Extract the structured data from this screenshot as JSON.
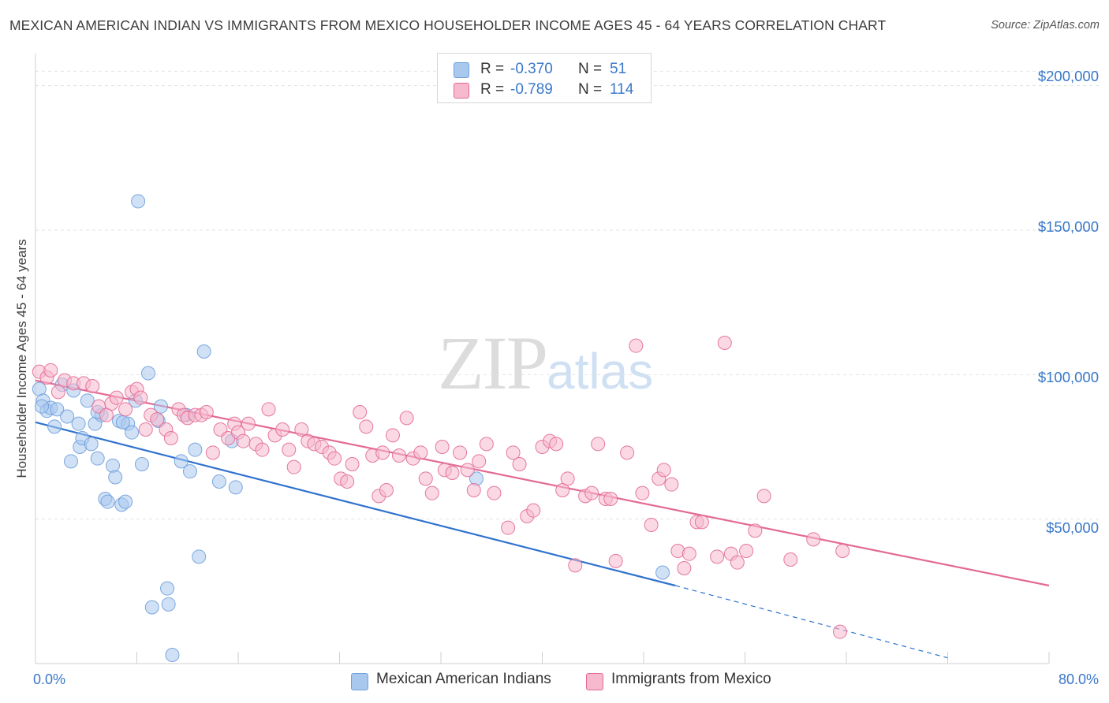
{
  "header": {
    "title": "MEXICAN AMERICAN INDIAN VS IMMIGRANTS FROM MEXICO HOUSEHOLDER INCOME AGES 45 - 64 YEARS CORRELATION CHART",
    "source": "Source: ZipAtlas.com"
  },
  "watermark": {
    "zip": "ZIP",
    "atlas": "atlas"
  },
  "legend": {
    "rows": [
      {
        "r_label": "R =",
        "r_value": "-0.370",
        "n_label": "N =",
        "n_value": "51",
        "color": "#a9c8ee"
      },
      {
        "r_label": "R =",
        "r_value": "-0.789",
        "n_label": "N =",
        "n_value": "114",
        "color": "#f6b9cd"
      }
    ]
  },
  "chart_data": {
    "type": "scatter",
    "title": "MEXICAN AMERICAN INDIAN VS IMMIGRANTS FROM MEXICO HOUSEHOLDER INCOME AGES 45 - 64 YEARS CORRELATION CHART",
    "xlabel": "",
    "ylabel": "Householder Income Ages 45 - 64 years",
    "xlim": [
      0,
      80
    ],
    "ylim": [
      0,
      210000
    ],
    "x_tick_labels": [
      "0.0%",
      "80.0%"
    ],
    "y_ticks": [
      50000,
      100000,
      150000,
      200000
    ],
    "y_tick_labels": [
      "$50,000",
      "$100,000",
      "$150,000",
      "$200,000"
    ],
    "grid": true,
    "legend_position": "top-center",
    "series": [
      {
        "name": "Mexican American Indians",
        "color": "#6f9fdc",
        "fill": "#a9c8ee",
        "r": -0.37,
        "n": 51,
        "trend": {
          "x0": 0,
          "y0": 83500,
          "x1": 50.5,
          "y1": 27000,
          "dash_to_x": 72,
          "dash_to_y": 2000
        },
        "points": [
          [
            0.3,
            95000
          ],
          [
            0.6,
            91000
          ],
          [
            0.9,
            87500
          ],
          [
            1.2,
            88500
          ],
          [
            1.5,
            82000
          ],
          [
            1.7,
            88000
          ],
          [
            2.1,
            96500
          ],
          [
            2.8,
            70000
          ],
          [
            3.0,
            94500
          ],
          [
            3.4,
            83000
          ],
          [
            3.5,
            75000
          ],
          [
            3.7,
            78000
          ],
          [
            4.1,
            91000
          ],
          [
            4.4,
            76000
          ],
          [
            4.7,
            83000
          ],
          [
            4.9,
            71000
          ],
          [
            5.2,
            86000
          ],
          [
            5.5,
            57000
          ],
          [
            5.7,
            56000
          ],
          [
            6.1,
            68500
          ],
          [
            6.3,
            64500
          ],
          [
            6.6,
            84000
          ],
          [
            6.8,
            55000
          ],
          [
            7.1,
            56000
          ],
          [
            7.3,
            83000
          ],
          [
            7.6,
            80000
          ],
          [
            7.9,
            91000
          ],
          [
            8.1,
            160000
          ],
          [
            8.4,
            69000
          ],
          [
            8.9,
            100500
          ],
          [
            9.2,
            19500
          ],
          [
            9.7,
            84000
          ],
          [
            9.9,
            89000
          ],
          [
            10.4,
            26000
          ],
          [
            10.5,
            20500
          ],
          [
            10.8,
            3000
          ],
          [
            11.5,
            70000
          ],
          [
            11.9,
            86000
          ],
          [
            12.2,
            66500
          ],
          [
            12.6,
            74000
          ],
          [
            12.9,
            37000
          ],
          [
            13.3,
            108000
          ],
          [
            14.5,
            63000
          ],
          [
            15.5,
            77000
          ],
          [
            15.8,
            61000
          ],
          [
            34.8,
            64000
          ],
          [
            49.5,
            31500
          ],
          [
            0.5,
            89000
          ],
          [
            2.5,
            85500
          ],
          [
            4.9,
            87000
          ],
          [
            6.9,
            83500
          ]
        ]
      },
      {
        "name": "Immigrants from Mexico",
        "color": "#e36a94",
        "fill": "#f6b9cd",
        "r": -0.789,
        "n": 114,
        "trend": {
          "x0": 0,
          "y0": 98000,
          "x1": 80,
          "y1": 27000
        },
        "points": [
          [
            0.3,
            101000
          ],
          [
            0.9,
            99000
          ],
          [
            1.2,
            101500
          ],
          [
            2.3,
            98000
          ],
          [
            3.0,
            97000
          ],
          [
            3.8,
            97000
          ],
          [
            1.8,
            94000
          ],
          [
            4.5,
            96000
          ],
          [
            5.0,
            89000
          ],
          [
            5.6,
            86000
          ],
          [
            6.0,
            90000
          ],
          [
            6.4,
            92000
          ],
          [
            7.1,
            88000
          ],
          [
            7.6,
            94000
          ],
          [
            8.0,
            95000
          ],
          [
            8.3,
            92000
          ],
          [
            8.7,
            81000
          ],
          [
            9.1,
            86000
          ],
          [
            9.6,
            84500
          ],
          [
            10.3,
            81000
          ],
          [
            10.7,
            78000
          ],
          [
            11.3,
            88000
          ],
          [
            11.7,
            86000
          ],
          [
            12.0,
            85000
          ],
          [
            12.6,
            86000
          ],
          [
            13.1,
            86000
          ],
          [
            13.5,
            87000
          ],
          [
            14.0,
            73000
          ],
          [
            14.6,
            81000
          ],
          [
            15.2,
            78000
          ],
          [
            15.7,
            83000
          ],
          [
            16.0,
            80000
          ],
          [
            16.4,
            77000
          ],
          [
            16.8,
            83000
          ],
          [
            17.4,
            76000
          ],
          [
            17.9,
            74000
          ],
          [
            18.4,
            88000
          ],
          [
            18.9,
            79000
          ],
          [
            19.5,
            81000
          ],
          [
            20.0,
            74000
          ],
          [
            20.4,
            68000
          ],
          [
            21.0,
            81000
          ],
          [
            21.5,
            77000
          ],
          [
            22.0,
            76000
          ],
          [
            22.6,
            75000
          ],
          [
            23.2,
            73000
          ],
          [
            23.6,
            71000
          ],
          [
            24.1,
            64000
          ],
          [
            24.6,
            63000
          ],
          [
            25.0,
            69000
          ],
          [
            25.6,
            87000
          ],
          [
            26.1,
            82000
          ],
          [
            26.6,
            72000
          ],
          [
            27.1,
            58000
          ],
          [
            27.4,
            73000
          ],
          [
            27.7,
            60000
          ],
          [
            28.2,
            79000
          ],
          [
            28.7,
            72000
          ],
          [
            29.3,
            85000
          ],
          [
            29.8,
            71000
          ],
          [
            30.4,
            73000
          ],
          [
            30.8,
            64000
          ],
          [
            31.3,
            59000
          ],
          [
            32.1,
            75000
          ],
          [
            32.3,
            67000
          ],
          [
            32.9,
            66000
          ],
          [
            33.5,
            73000
          ],
          [
            34.1,
            67000
          ],
          [
            34.6,
            60000
          ],
          [
            35.0,
            70000
          ],
          [
            35.6,
            76000
          ],
          [
            36.2,
            59000
          ],
          [
            37.3,
            47000
          ],
          [
            37.7,
            73000
          ],
          [
            38.2,
            69000
          ],
          [
            38.8,
            51000
          ],
          [
            39.3,
            53000
          ],
          [
            40.0,
            75000
          ],
          [
            40.6,
            77000
          ],
          [
            41.1,
            76000
          ],
          [
            41.6,
            60000
          ],
          [
            42.0,
            64000
          ],
          [
            42.6,
            34000
          ],
          [
            43.4,
            58000
          ],
          [
            43.9,
            59000
          ],
          [
            44.4,
            76000
          ],
          [
            45.0,
            57000
          ],
          [
            45.4,
            57000
          ],
          [
            45.8,
            35500
          ],
          [
            46.7,
            73000
          ],
          [
            47.4,
            110000
          ],
          [
            47.9,
            59000
          ],
          [
            48.6,
            48000
          ],
          [
            49.2,
            64000
          ],
          [
            49.6,
            67000
          ],
          [
            50.2,
            62000
          ],
          [
            50.7,
            39000
          ],
          [
            51.2,
            33000
          ],
          [
            51.6,
            38000
          ],
          [
            52.2,
            49000
          ],
          [
            52.6,
            49000
          ],
          [
            53.8,
            37000
          ],
          [
            54.4,
            111000
          ],
          [
            54.9,
            38000
          ],
          [
            55.4,
            35000
          ],
          [
            56.1,
            39000
          ],
          [
            56.8,
            46000
          ],
          [
            57.5,
            58000
          ],
          [
            59.6,
            36000
          ],
          [
            61.4,
            43000
          ],
          [
            63.7,
            39000
          ],
          [
            63.5,
            11000
          ]
        ]
      }
    ]
  }
}
